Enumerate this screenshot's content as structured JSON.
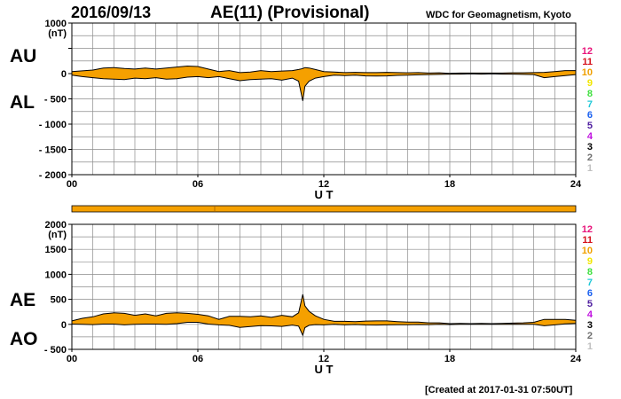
{
  "header": {
    "date": "2016/09/13",
    "title": "AE(11) (Provisional)",
    "source": "WDC for Geomagnetism, Kyoto"
  },
  "footer": {
    "created": "[Created at 2017-01-31 07:50UT]"
  },
  "colors": {
    "fill": "#f5a000",
    "line": "#000000",
    "grid": "#8c8c8c",
    "station_colors": [
      "#e8147a",
      "#d4101a",
      "#f0a000",
      "#f2e600",
      "#40e040",
      "#20c8d8",
      "#1a60f0",
      "#5020a0",
      "#c010e0",
      "#000000",
      "#707070",
      "#c0c0c0"
    ]
  },
  "station_numbers": [
    "12",
    "11",
    "10",
    "9",
    "8",
    "7",
    "6",
    "5",
    "4",
    "3",
    "2",
    "1"
  ],
  "chart_data": [
    {
      "type": "area",
      "panel": "AU/AL",
      "label_top": "AU",
      "label_bottom": "AL",
      "ylabel": "(nT)",
      "xlabel": "U T",
      "ylim": [
        -2000,
        1000
      ],
      "yticks": [
        1000,
        500,
        0,
        -500,
        -1000,
        -1500,
        -2000
      ],
      "ytick_labels": [
        "1000",
        "",
        "0",
        "- 500",
        "- 1000",
        "- 1500",
        "- 2000"
      ],
      "xlim": [
        0,
        24
      ],
      "xticks": [
        0,
        6,
        12,
        18,
        24
      ],
      "xtick_labels": [
        "00",
        "06",
        "12",
        "18",
        "24"
      ],
      "grid": true,
      "x": [
        0,
        0.5,
        1,
        1.5,
        2,
        2.5,
        3,
        3.5,
        4,
        4.5,
        5,
        5.5,
        6,
        6.5,
        7,
        7.5,
        8,
        8.5,
        9,
        9.5,
        10,
        10.5,
        10.8,
        11,
        11.1,
        11.3,
        11.6,
        12,
        12.5,
        13,
        13.5,
        14,
        14.5,
        15,
        15.5,
        16,
        16.5,
        17,
        17.5,
        18,
        18.5,
        19,
        19.5,
        20,
        20.5,
        21,
        21.5,
        22,
        22.5,
        23,
        23.5,
        24
      ],
      "series": [
        {
          "name": "AU",
          "values": [
            40,
            55,
            70,
            110,
            120,
            100,
            90,
            110,
            90,
            110,
            130,
            150,
            140,
            90,
            40,
            60,
            20,
            30,
            60,
            40,
            50,
            60,
            80,
            100,
            120,
            110,
            80,
            40,
            30,
            20,
            25,
            20,
            20,
            25,
            20,
            15,
            20,
            10,
            15,
            5,
            10,
            10,
            10,
            10,
            10,
            15,
            15,
            20,
            25,
            40,
            60,
            60
          ]
        },
        {
          "name": "AL",
          "values": [
            -30,
            -60,
            -80,
            -100,
            -110,
            -120,
            -90,
            -100,
            -80,
            -110,
            -100,
            -70,
            -60,
            -80,
            -60,
            -100,
            -140,
            -120,
            -110,
            -100,
            -130,
            -90,
            -150,
            -540,
            -250,
            -150,
            -90,
            -60,
            -30,
            -40,
            -30,
            -45,
            -50,
            -45,
            -35,
            -30,
            -25,
            -20,
            -15,
            -10,
            -10,
            -5,
            -10,
            -5,
            -10,
            -10,
            -15,
            -20,
            -80,
            -60,
            -40,
            -20
          ]
        }
      ]
    },
    {
      "type": "area",
      "panel": "AE/AO",
      "label_top": "AE",
      "label_bottom": "AO",
      "ylabel": "(nT)",
      "xlabel": "U T",
      "ylim": [
        -500,
        2000
      ],
      "yticks": [
        2000,
        1500,
        1000,
        500,
        0,
        -500
      ],
      "ytick_labels": [
        "2000",
        "1500",
        "1000",
        "500",
        "0",
        "- 500"
      ],
      "xlim": [
        0,
        24
      ],
      "xticks": [
        0,
        6,
        12,
        18,
        24
      ],
      "xtick_labels": [
        "00",
        "06",
        "12",
        "18",
        "24"
      ],
      "grid": true,
      "x": [
        0,
        0.5,
        1,
        1.5,
        2,
        2.5,
        3,
        3.5,
        4,
        4.5,
        5,
        5.5,
        6,
        6.5,
        7,
        7.5,
        8,
        8.5,
        9,
        9.5,
        10,
        10.5,
        10.8,
        11,
        11.1,
        11.3,
        11.6,
        12,
        12.5,
        13,
        13.5,
        14,
        14.5,
        15,
        15.5,
        16,
        16.5,
        17,
        17.5,
        18,
        18.5,
        19,
        19.5,
        20,
        20.5,
        21,
        21.5,
        22,
        22.5,
        23,
        23.5,
        24
      ],
      "series": [
        {
          "name": "AE",
          "values": [
            70,
            120,
            150,
            210,
            230,
            220,
            180,
            210,
            170,
            220,
            230,
            220,
            200,
            170,
            100,
            160,
            160,
            150,
            170,
            140,
            180,
            150,
            230,
            600,
            370,
            260,
            170,
            100,
            60,
            60,
            55,
            65,
            70,
            70,
            55,
            45,
            45,
            30,
            30,
            15,
            20,
            15,
            20,
            15,
            20,
            25,
            30,
            40,
            100,
            100,
            100,
            80
          ]
        },
        {
          "name": "AO",
          "values": [
            5,
            0,
            -5,
            5,
            5,
            -10,
            0,
            5,
            5,
            0,
            15,
            40,
            40,
            5,
            -10,
            -20,
            -60,
            -45,
            -25,
            -30,
            -40,
            -15,
            -35,
            -220,
            -65,
            -20,
            -5,
            -10,
            0,
            -10,
            -3,
            -12,
            -15,
            -10,
            -8,
            -8,
            -3,
            -5,
            0,
            -3,
            0,
            3,
            0,
            3,
            0,
            3,
            0,
            0,
            -28,
            -10,
            10,
            20
          ]
        }
      ]
    }
  ]
}
